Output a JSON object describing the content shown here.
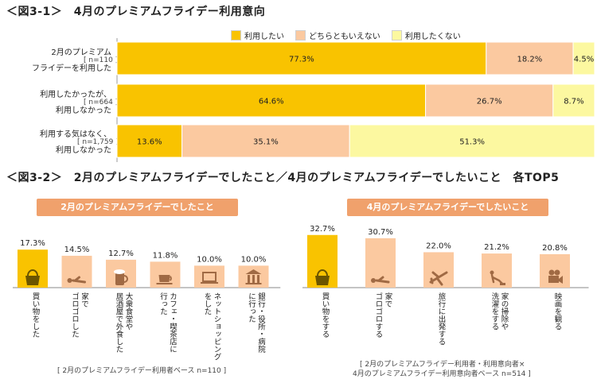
{
  "fig1": {
    "title": "＜図3-1＞　4月のプレミアムフライデー利用意向",
    "legend": [
      "利用したい",
      "どちらともいえない",
      "利用したくない"
    ],
    "colors": [
      "#f9c300",
      "#fbc9a0",
      "#fcf8a0"
    ],
    "rows": [
      {
        "line1": "2月のプレミアム",
        "line2": "フライデーを利用した",
        "n": "[ n=110 ]"
      },
      {
        "line1": "利用したかったが、",
        "line2": "利用しなかった",
        "n": "[ n=664 ]"
      },
      {
        "line1": "利用する気はなく、",
        "line2": "利用しなかった",
        "n": "[ n=1,759 ]"
      }
    ]
  },
  "fig2": {
    "title": "＜図3-2＞　2月のプレミアムフライデーでしたこと／4月のプレミアムフライデーでしたいこと　各TOP5",
    "left_header": "2月のプレミアムフライデーでしたこと",
    "right_header": "4月のプレミアムフライデーでしたいこと",
    "left_foot": "[ 2月のプレミアムフライデー利用者ベース n=110 ]",
    "right_foot_1": "[ 2月のプレミアムフライデー利用者・利用意向者×",
    "right_foot_2": "4月のプレミアムフライデー利用意向者ベース n=514 ]"
  },
  "chart_data": [
    {
      "type": "bar",
      "orientation": "horizontal-stacked",
      "title": "4月のプレミアムフライデー利用意向",
      "categories": [
        "2月のプレミアムフライデーを利用した [n=110]",
        "利用したかったが、利用しなかった [n=664]",
        "利用する気はなく、利用しなかった [n=1,759]"
      ],
      "series": [
        {
          "name": "利用したい",
          "values": [
            77.3,
            64.6,
            13.6
          ],
          "labels": [
            "77.3%",
            "64.6%",
            "13.6%"
          ]
        },
        {
          "name": "どちらともいえない",
          "values": [
            18.2,
            26.7,
            35.1
          ],
          "labels": [
            "18.2%",
            "26.7%",
            "35.1%"
          ]
        },
        {
          "name": "利用したくない",
          "values": [
            4.5,
            8.7,
            51.3
          ],
          "labels": [
            "4.5%",
            "8.7%",
            "51.3%"
          ]
        }
      ],
      "xlim": [
        0,
        100
      ]
    },
    {
      "type": "bar",
      "title": "2月のプレミアムフライデーでしたこと",
      "ylim": [
        0,
        20
      ],
      "categories": [
        "買い物をした",
        "家でゴロゴロした",
        "大衆食堂や居酒屋で外食した",
        "カフェ・喫茶店に行った",
        "ネットショッピングをした",
        "銀行・役所・病院に行った"
      ],
      "label_lines": [
        [
          "買い物をした"
        ],
        [
          "家で",
          "ゴロゴロした"
        ],
        [
          "大衆食堂や",
          "居酒屋で外食した"
        ],
        [
          "カフェ・喫茶店に",
          "行った"
        ],
        [
          "ネットショッピング",
          "をした"
        ],
        [
          "銀行・役所・病院",
          "に行った"
        ]
      ],
      "values": [
        17.3,
        14.5,
        12.7,
        11.8,
        10.0,
        10.0
      ],
      "labels": [
        "17.3%",
        "14.5%",
        "12.7%",
        "11.8%",
        "10.0%",
        "10.0%"
      ],
      "icons": [
        "bag-icon",
        "lying-person-icon",
        "beer-mug-icon",
        "coffee-cup-icon",
        "laptop-icon",
        "bank-icon"
      ]
    },
    {
      "type": "bar",
      "title": "4月のプレミアムフライデーでしたいこと",
      "ylim": [
        0,
        40
      ],
      "categories": [
        "買い物をする",
        "家でゴロゴロする",
        "旅行に出発する",
        "家の掃除や洗濯をする",
        "映画を観る"
      ],
      "label_lines": [
        [
          "買い物をする"
        ],
        [
          "家で",
          "ゴロゴロする"
        ],
        [
          "旅行に出発する"
        ],
        [
          "家の掃除や",
          "洗濯をする"
        ],
        [
          "映画を観る"
        ]
      ],
      "values": [
        32.7,
        30.7,
        22.0,
        21.2,
        20.8
      ],
      "labels": [
        "32.7%",
        "30.7%",
        "22.0%",
        "21.2%",
        "20.8%"
      ],
      "icons": [
        "bag-icon",
        "lying-person-icon",
        "airplane-icon",
        "vacuum-cleaner-icon",
        "movie-camera-icon"
      ]
    }
  ]
}
